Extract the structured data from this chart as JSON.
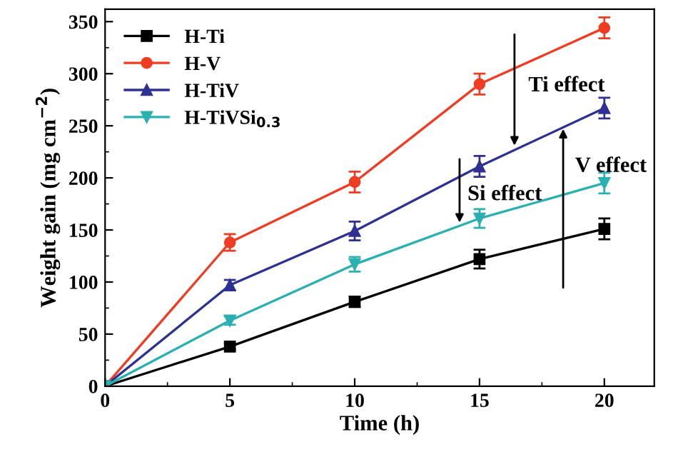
{
  "chart_data": {
    "type": "line",
    "xlabel": "Time (h)",
    "ylabel": "Weight gain (mg cm$^{−2}$)",
    "x": [
      0,
      5,
      10,
      15,
      20
    ],
    "xlim": [
      0,
      22
    ],
    "xticks": [
      0,
      5,
      10,
      15,
      20
    ],
    "ylim": [
      0,
      362
    ],
    "yticks": [
      0,
      50,
      100,
      150,
      200,
      250,
      300,
      350
    ],
    "grid": false,
    "legend": "top left",
    "line_style": "solid",
    "series": [
      {
        "name": "H-Ti",
        "color": "#000000",
        "marker": "square",
        "values": [
          0,
          38,
          81,
          122,
          151
        ],
        "errors": [
          null,
          3,
          5,
          9,
          10
        ]
      },
      {
        "name": "H-V",
        "color": "#f03c22",
        "marker": "circle",
        "values": [
          0,
          138,
          196,
          290,
          344
        ],
        "errors": [
          null,
          8,
          10,
          10,
          10
        ]
      },
      {
        "name": "H-TiV",
        "color": "#2e3192",
        "marker": "triangle",
        "values": [
          0,
          97,
          149,
          211,
          267
        ],
        "errors": [
          null,
          5,
          9,
          10,
          10
        ]
      },
      {
        "name": "H-TiVSi$_{0.3}$",
        "color": "#2ab0b0",
        "marker": "triangle_down",
        "values": [
          0,
          63,
          117,
          161,
          195
        ],
        "errors": [
          null,
          4,
          7,
          9,
          10
        ]
      }
    ],
    "annotations": [
      {
        "text": "Ti effect",
        "x": 16.4,
        "y": 231
      },
      {
        "text": "Si effect",
        "x": 14.2,
        "y": 157
      },
      {
        "text": "V effect",
        "x": 18.35,
        "y": 247
      }
    ]
  }
}
